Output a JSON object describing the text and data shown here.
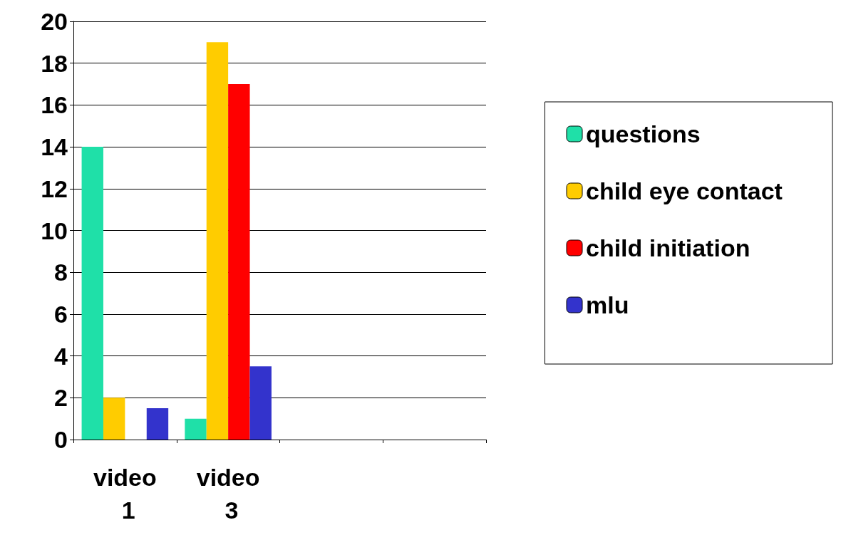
{
  "chart_data": {
    "type": "bar",
    "categories": [
      "video 1",
      "video 3",
      null,
      null
    ],
    "series": [
      {
        "name": "questions",
        "color": "#1fe0a8",
        "values": [
          14,
          1,
          null,
          null
        ]
      },
      {
        "name": "child eye contact",
        "color": "#ffcc00",
        "values": [
          2,
          19,
          null,
          null
        ]
      },
      {
        "name": "child initiation",
        "color": "#ff0000",
        "values": [
          0,
          17,
          null,
          null
        ]
      },
      {
        "name": "mlu",
        "color": "#3333cc",
        "values": [
          1.5,
          3.5,
          null,
          null
        ]
      }
    ],
    "ylim": [
      0,
      20
    ],
    "yticks": [
      0,
      2,
      4,
      6,
      8,
      10,
      12,
      14,
      16,
      18,
      20
    ],
    "grid": "y",
    "legend": "right"
  }
}
